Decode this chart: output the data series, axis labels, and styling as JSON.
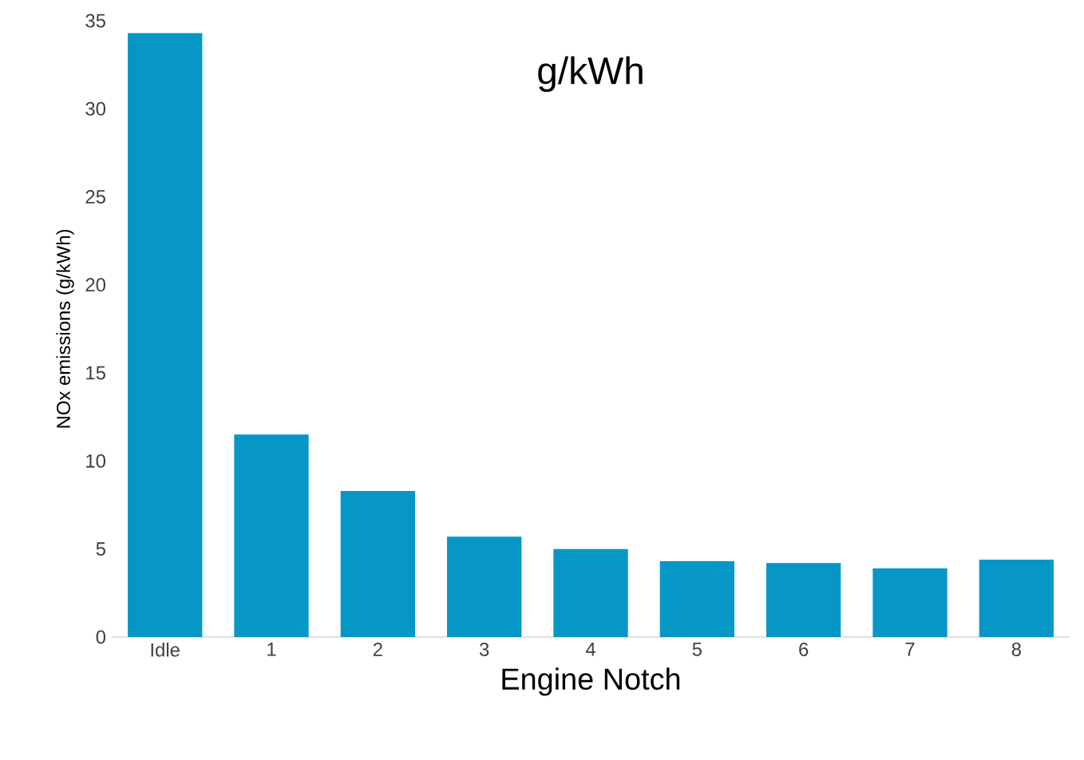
{
  "chart_data": {
    "type": "bar",
    "title": "g/kWh",
    "xlabel": "Engine Notch",
    "ylabel": "NOx emissions (g/kWh)",
    "categories": [
      "Idle",
      "1",
      "2",
      "3",
      "4",
      "5",
      "6",
      "7",
      "8"
    ],
    "values": [
      34.3,
      11.5,
      8.3,
      5.7,
      5.0,
      4.3,
      4.2,
      3.9,
      4.4
    ],
    "color": "#0797c7",
    "ylim": [
      0,
      35
    ],
    "yticks": [
      0,
      5,
      10,
      15,
      20,
      25,
      30,
      35
    ],
    "grid": false
  }
}
